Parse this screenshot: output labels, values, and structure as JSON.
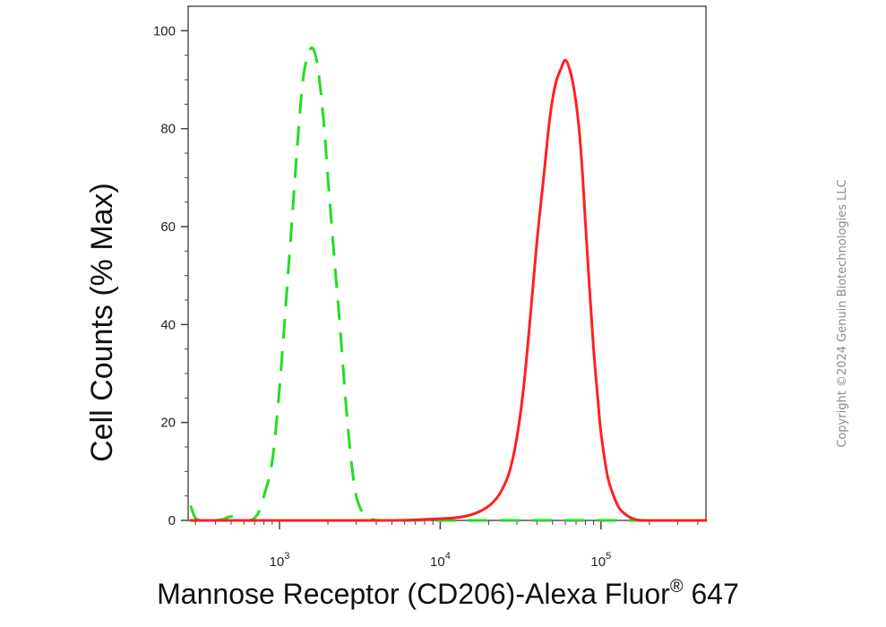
{
  "chart_data": {
    "type": "line",
    "title": "",
    "xlabel": "Mannose Receptor (CD206)-Alexa Fluor",
    "xlabel_superscript": "®",
    "xlabel_suffix": " 647",
    "ylabel": "Cell Counts (% Max)",
    "x_scale": "log",
    "xlim": [
      270,
      450000
    ],
    "ylim": [
      0,
      105
    ],
    "y_ticks": [
      0,
      20,
      40,
      60,
      80,
      100
    ],
    "y_tick_labels": [
      "0",
      "20",
      "40",
      "60",
      "80",
      "100"
    ],
    "x_ticks": [
      {
        "value": 1000,
        "base": "10",
        "exp": "3"
      },
      {
        "value": 10000,
        "base": "10",
        "exp": "4"
      },
      {
        "value": 100000,
        "base": "10",
        "exp": "5"
      }
    ],
    "grid": false,
    "series": [
      {
        "color": "#22dd22",
        "style": "dashed",
        "x": [
          280,
          290,
          300,
          320,
          350,
          400,
          450,
          500,
          550,
          600,
          650,
          700,
          750,
          800,
          900,
          1000,
          1100,
          1200,
          1300,
          1400,
          1500,
          1600,
          1700,
          1800,
          1900,
          2000,
          2200,
          2400,
          2600,
          2800,
          3000,
          3300,
          3600,
          3900,
          4200,
          5000,
          7000,
          10000,
          20000,
          50000,
          100000,
          200000,
          450000
        ],
        "y": [
          3,
          1.5,
          0.5,
          0,
          0,
          0,
          0.3,
          0.8,
          0.3,
          0,
          0,
          0.5,
          2,
          5,
          12,
          27,
          45,
          62,
          78,
          90,
          95,
          96.5,
          94,
          88,
          80,
          70,
          53,
          38,
          23,
          12,
          5,
          1.5,
          0.4,
          0.1,
          0,
          0,
          0,
          0,
          0,
          0,
          0,
          0,
          0
        ]
      },
      {
        "color": "#ff2020",
        "style": "solid",
        "x": [
          280,
          1000,
          5000,
          8000,
          12000,
          15000,
          18000,
          21000,
          24000,
          27000,
          30000,
          33000,
          36000,
          40000,
          44000,
          48000,
          52000,
          56000,
          60000,
          64000,
          68000,
          72000,
          76000,
          80000,
          85000,
          90000,
          95000,
          100000,
          110000,
          120000,
          130000,
          145000,
          160000,
          180000,
          200000,
          450000
        ],
        "y": [
          0,
          0,
          0,
          0.2,
          0.5,
          1,
          2,
          3.5,
          6,
          10,
          17,
          27,
          40,
          57,
          70,
          82,
          89,
          92,
          94,
          92,
          88,
          82,
          73,
          61,
          47,
          35,
          26,
          18,
          9,
          5,
          2.5,
          1,
          0.3,
          0,
          0,
          0
        ]
      }
    ]
  },
  "copyright": "Copyright ©2024 Genuin Biotechnologies LLC"
}
